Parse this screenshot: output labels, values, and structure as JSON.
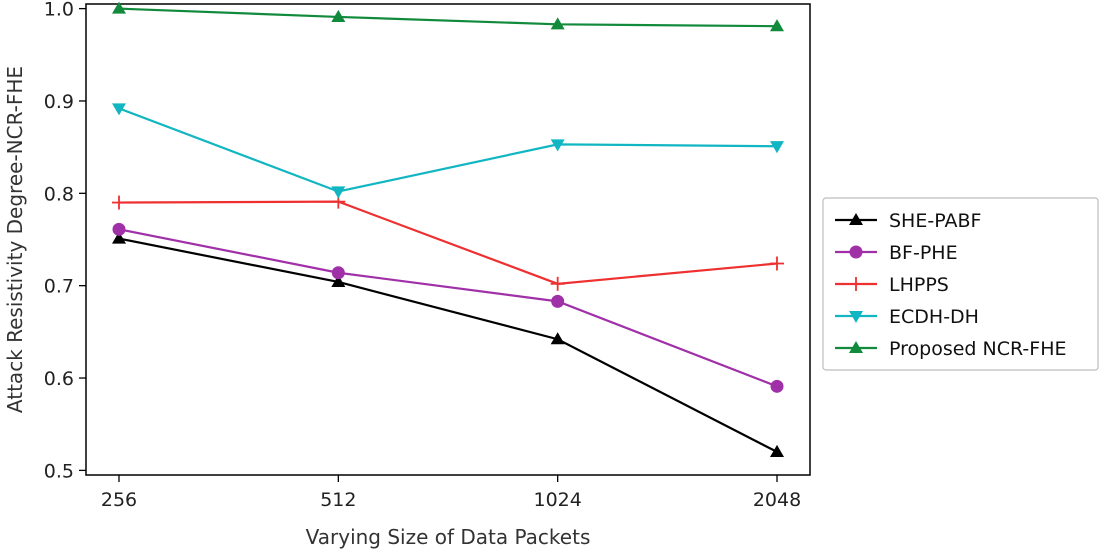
{
  "chart_data": {
    "type": "line",
    "title": "",
    "xlabel": "Varying Size of Data Packets",
    "ylabel": "Attack Resistivity Degree-NCR-FHE",
    "categories": [
      "256",
      "512",
      "1024",
      "2048"
    ],
    "yticks": [
      "0.5",
      "0.6",
      "0.7",
      "0.8",
      "0.9",
      "1.0"
    ],
    "ylim": [
      0.495,
      1.005
    ],
    "grid": false,
    "legend_position": "right",
    "series": [
      {
        "name": "SHE-PABF",
        "color": "#000000",
        "marker": "triangle-up",
        "values": [
          0.751,
          0.704,
          0.642,
          0.52
        ]
      },
      {
        "name": "BF-PHE",
        "color": "#a030a8",
        "marker": "circle",
        "values": [
          0.761,
          0.714,
          0.683,
          0.591
        ]
      },
      {
        "name": "LHPPS",
        "color": "#ee3030",
        "marker": "plus",
        "values": [
          0.79,
          0.791,
          0.702,
          0.724
        ]
      },
      {
        "name": "ECDH-DH",
        "color": "#12b6c2",
        "marker": "triangle-down",
        "values": [
          0.892,
          0.802,
          0.853,
          0.851
        ]
      },
      {
        "name": "Proposed NCR-FHE",
        "color": "#118a3c",
        "marker": "triangle-up",
        "values": [
          1.0,
          0.991,
          0.983,
          0.981
        ]
      }
    ]
  }
}
